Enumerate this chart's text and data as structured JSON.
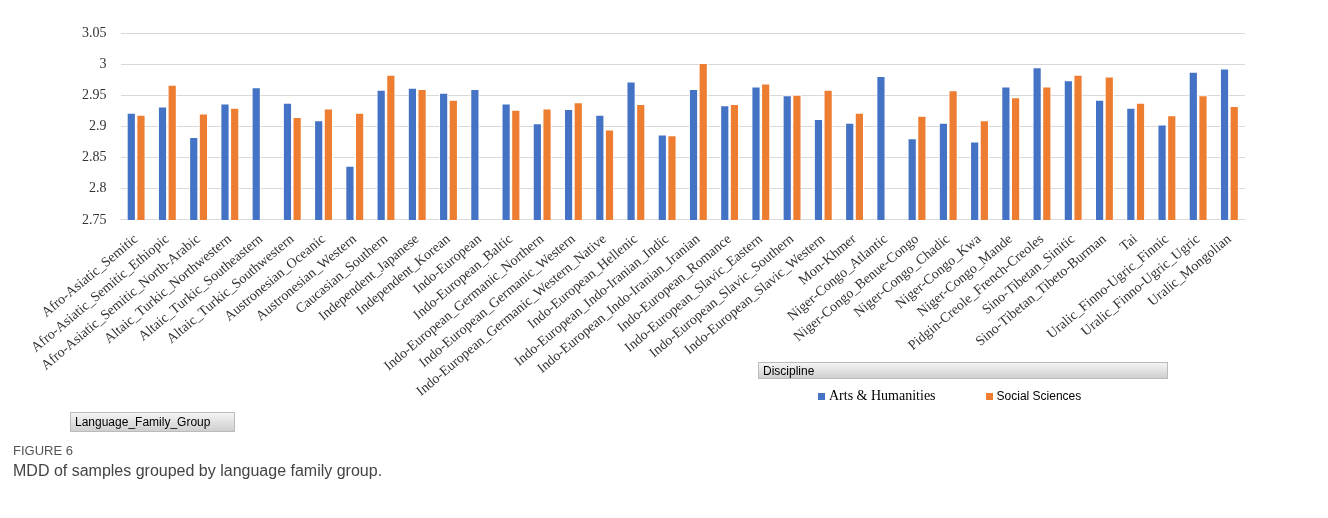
{
  "chart_data": {
    "type": "bar",
    "categories": [
      "Afro-Asiatic_Semitic",
      "Afro-Asiatic_Semitic_Ethiopic",
      "Afro-Asiatic_Semitic_North-Arabic",
      "Altaic_Turkic_Northwestern",
      "Altaic_Turkic_Southeastern",
      "Altaic_Turkic_Southwestern",
      "Austronesian_Oceanic",
      "Austronesian_Western",
      "Caucasian_Southern",
      "Independent_Japanese",
      "Independent_Korean",
      "Indo-European",
      "Indo-European_Baltic",
      "Indo-European_Germanic_Northern",
      "Indo-European_Germanic_Western",
      "Indo-European_Germanic_Western_Native",
      "Indo-European_Hellenic",
      "Indo-European_Indo-Iranian_Indic",
      "Indo-European_Indo-Iranian_Iranian",
      "Indo-European_Romance",
      "Indo-European_Slavic_Eastern",
      "Indo-European_Slavic_Southern",
      "Indo-European_Slavic_Western",
      "Mon-Khmer",
      "Niger-Congo_Atlantic",
      "Niger-Congo_Benue-Congo",
      "Niger-Congo_Chadic",
      "Niger-Congo_Kwa",
      "Niger-Congo_Mande",
      "Pidgin-Creole_French-Creoles",
      "Sino-Tibetan_Sinitic",
      "Sino-Tibetan_Tibeto-Burman",
      "Tai",
      "Uralic_Finno-Ugric_Finnic",
      "Uralic_Finno-Ugric_Ugric",
      "Uralic_Mongolian"
    ],
    "series": [
      {
        "name": "Arts & Humanities",
        "color": "#4472c4",
        "values": [
          2.922,
          2.932,
          2.883,
          2.937,
          2.963,
          2.938,
          2.91,
          2.837,
          2.959,
          2.962,
          2.954,
          2.96,
          2.937,
          2.905,
          2.928,
          2.919,
          2.972,
          2.887,
          2.96,
          2.934,
          2.964,
          2.95,
          2.912,
          2.906,
          2.981,
          2.881,
          2.906,
          2.876,
          2.964,
          2.995,
          2.974,
          2.943,
          2.93,
          2.903,
          2.988,
          2.993
        ]
      },
      {
        "name": "Social Sciences",
        "color": "#ed7d31",
        "values": [
          2.919,
          2.967,
          2.921,
          2.93,
          null,
          2.915,
          2.929,
          2.922,
          2.983,
          2.96,
          2.943,
          null,
          2.927,
          2.929,
          2.939,
          2.895,
          2.936,
          2.886,
          3.002,
          2.936,
          2.969,
          2.951,
          2.959,
          2.922,
          null,
          2.917,
          2.958,
          2.91,
          2.947,
          2.964,
          2.983,
          2.98,
          2.938,
          2.918,
          2.95,
          2.933
        ]
      }
    ],
    "ylim": [
      2.75,
      3.05
    ],
    "yticks": [
      2.75,
      2.8,
      2.85,
      2.9,
      2.95,
      3,
      3.05
    ],
    "grid": "y",
    "legend": "bottom right",
    "legend_title": "Discipline",
    "xlabel": "Language_Family_Group",
    "annotations": [
      "FIGURE 6",
      "MDD of samples grouped by language family group."
    ]
  }
}
